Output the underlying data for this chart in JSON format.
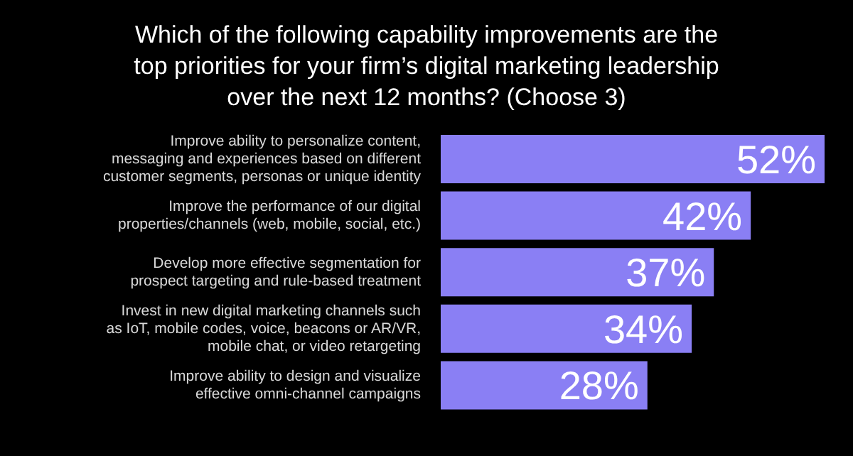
{
  "chart_data": {
    "type": "bar",
    "orientation": "horizontal",
    "title": "Which of the following capability improvements are the top priorities for your firm’s digital marketing leadership over the next 12 months? (Choose 3)",
    "categories": [
      "Improve ability to personalize content, messaging and experiences based on different customer segments, personas or unique identity",
      "Improve the performance of our digital properties/channels (web, mobile, social, etc.)",
      "Develop more effective segmentation for prospect targeting and rule-based treatment",
      "Invest in new digital marketing channels such as IoT, mobile codes, voice, beacons or AR/VR, mobile chat, or video retargeting",
      "Improve ability to design and visualize effective omni-channel campaigns"
    ],
    "values": [
      52,
      42,
      37,
      34,
      28
    ],
    "value_labels": [
      "52%",
      "42%",
      "37%",
      "34%",
      "28%"
    ],
    "color": "#8a7ff4",
    "tick_labels": "y",
    "legend": false,
    "grid": false
  }
}
